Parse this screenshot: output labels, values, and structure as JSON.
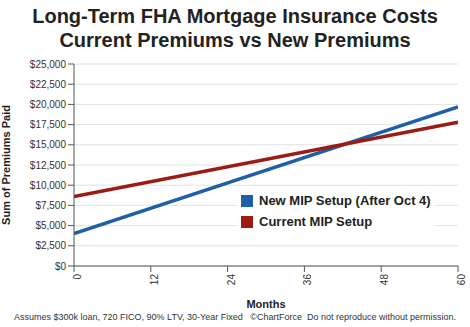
{
  "chart_data": {
    "type": "line",
    "title": "Long-Term FHA Mortgage Insurance Costs",
    "subtitle": "Current Premiums vs New Premiums",
    "x_label": "Months",
    "y_label": "Sum of Premiums Paid",
    "x": [
      0,
      60
    ],
    "series": [
      {
        "name": "New MIP Setup (After Oct 4)",
        "color": "#1f5fa6",
        "values": [
          4000,
          19700
        ]
      },
      {
        "name": "Current MIP Setup",
        "color": "#9b1c12",
        "values": [
          8600,
          17800
        ]
      }
    ],
    "xlim": [
      0,
      60
    ],
    "xticks": [
      0,
      12,
      24,
      36,
      48,
      60
    ],
    "ylim": [
      0,
      25000
    ],
    "yticks": [
      {
        "value": 0,
        "label": "$0"
      },
      {
        "value": 2500,
        "label": "$2,500"
      },
      {
        "value": 5000,
        "label": "$5,000"
      },
      {
        "value": 7500,
        "label": "$7,500"
      },
      {
        "value": 10000,
        "label": "$10,000"
      },
      {
        "value": 12500,
        "label": "$12,500"
      },
      {
        "value": 15000,
        "label": "$15,000"
      },
      {
        "value": 17500,
        "label": "$17,500"
      },
      {
        "value": 20000,
        "label": "$20,000"
      },
      {
        "value": 22500,
        "label": "$22,500"
      },
      {
        "value": 25000,
        "label": "$25,000"
      }
    ],
    "grid": true,
    "legend": "lower right",
    "notes": [
      "Assumes $300k loan, 720 FICO, 90% LTV, 30-Year Fixed",
      "©ChartForce  Do not reproduce without permission."
    ]
  }
}
